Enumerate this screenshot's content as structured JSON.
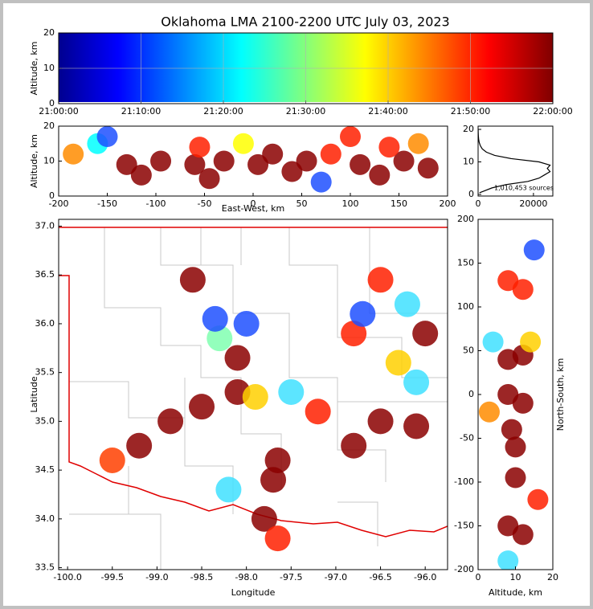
{
  "chart_data": [
    {
      "type": "time-height",
      "title": "Oklahoma LMA 2100-2200 UTC July 03, 2023",
      "ylabel": "Altitude, km",
      "xlim": [
        0,
        60
      ],
      "xticks": [
        {
          "value": 0,
          "label": "21:00:00"
        },
        {
          "value": 10,
          "label": "21:10:00"
        },
        {
          "value": 20,
          "label": "21:20:00"
        },
        {
          "value": 30,
          "label": "21:30:00"
        },
        {
          "value": 40,
          "label": "21:40:00"
        },
        {
          "value": 50,
          "label": "21:50:00"
        },
        {
          "value": 60,
          "label": "22:00:00"
        }
      ],
      "ylim": [
        0,
        20
      ],
      "yticks": [
        0,
        10,
        20
      ],
      "grid": true
    },
    {
      "type": "scatter",
      "xlabel": "East-West, km",
      "ylabel": "Altitude, km",
      "xlim": [
        -200,
        200
      ],
      "xticks": [
        -200,
        -150,
        -100,
        -50,
        0,
        50,
        100,
        150,
        200
      ],
      "ylim": [
        0,
        20
      ],
      "yticks": [
        0,
        10,
        20
      ],
      "x": [
        -185,
        -160,
        -130,
        -115,
        -95,
        -60,
        -45,
        -30,
        -55,
        5,
        20,
        40,
        55,
        110,
        130,
        155,
        180,
        140,
        80,
        -10,
        -150,
        70,
        100,
        170
      ],
      "y": [
        12,
        15,
        9,
        6,
        10,
        9,
        5,
        10,
        14,
        9,
        12,
        7,
        10,
        9,
        6,
        10,
        8,
        14,
        12,
        15,
        17,
        4,
        17,
        15
      ],
      "colors": [
        "#ff8c00",
        "#00ffff",
        "#8b0000",
        "#8b0000",
        "#8b0000",
        "#8b0000",
        "#8b0000",
        "#8b0000",
        "#ff2000",
        "#8b0000",
        "#8b0000",
        "#8b0000",
        "#8b0000",
        "#8b0000",
        "#8b0000",
        "#8b0000",
        "#8b0000",
        "#ff2000",
        "#ff2000",
        "#ffff00",
        "#1e50ff",
        "#1e50ff",
        "#ff2000",
        "#ff8c00"
      ]
    },
    {
      "type": "line",
      "annotation": "1,010,453 sources",
      "xlim": [
        0,
        27000
      ],
      "xticks": [
        0,
        20000
      ],
      "ylim": [
        -0.5,
        21
      ],
      "yticks": [
        0,
        10,
        20
      ],
      "x": [
        500,
        2000,
        5000,
        10000,
        18000,
        22000,
        24000,
        26000,
        25000,
        26000,
        22000,
        12000,
        6000,
        3000,
        1500,
        800,
        400,
        200,
        100,
        50,
        20
      ],
      "y": [
        0.5,
        1,
        2,
        3,
        4,
        5,
        6,
        7,
        8,
        9,
        10,
        11,
        12,
        13,
        14,
        15,
        16,
        17,
        18,
        19,
        20
      ]
    },
    {
      "type": "scatter",
      "xlabel": "Longitude",
      "ylabel": "Latitude",
      "xlim": [
        -100.1,
        -95.75
      ],
      "xticks": [
        {
          "value": -100,
          "label": "-100.0"
        },
        -99.5,
        {
          "value": -99,
          "label": "-99.0"
        },
        -98.5,
        {
          "value": -98,
          "label": "-98.0"
        },
        -97.5,
        {
          "value": -97,
          "label": "-97.0"
        },
        -96.5,
        {
          "value": -96,
          "label": "-96.0"
        }
      ],
      "ylim": [
        33.48,
        37.07
      ],
      "yticks": [
        33.5,
        {
          "value": 34,
          "label": "34.0"
        },
        34.5,
        {
          "value": 35,
          "label": "35.0"
        },
        35.5,
        {
          "value": 36,
          "label": "36.0"
        },
        36.5,
        {
          "value": 37,
          "label": "37.0"
        }
      ],
      "x": [
        -97.7,
        -97.65,
        -97.8,
        -97.65,
        -98.1,
        -98.5,
        -98.85,
        -99.2,
        -96.5,
        -96.1,
        -96.8,
        -97.2,
        -98.1,
        -98.3,
        -98.6,
        -96.5,
        -96.8,
        -96.2,
        -96.1,
        -96.0,
        -98.0,
        -97.5,
        -99.5,
        -96.7,
        -98.2,
        -97.9,
        -98.35,
        -96.3
      ],
      "y": [
        34.4,
        34.6,
        34.0,
        33.8,
        35.3,
        35.15,
        35.0,
        34.75,
        35.0,
        34.95,
        34.75,
        35.1,
        35.65,
        35.85,
        36.45,
        36.45,
        35.9,
        36.2,
        35.4,
        35.9,
        36.0,
        35.3,
        34.6,
        36.1,
        34.3,
        35.25,
        36.05,
        35.6
      ],
      "colors": [
        "#8b0000",
        "#8b0000",
        "#8b0000",
        "#ff2000",
        "#8b0000",
        "#8b0000",
        "#8b0000",
        "#8b0000",
        "#8b0000",
        "#8b0000",
        "#8b0000",
        "#ff2000",
        "#8b0000",
        "#80ffb0",
        "#8b0000",
        "#ff2000",
        "#ff2000",
        "#40e0ff",
        "#40e0ff",
        "#8b0000",
        "#1e50ff",
        "#40e0ff",
        "#ff4000",
        "#1e50ff",
        "#40e0ff",
        "#ffd000",
        "#1e50ff",
        "#ffd000"
      ]
    },
    {
      "type": "scatter",
      "xlabel": "Altitude, km",
      "ylabel": "North-South, km",
      "xlim": [
        0,
        20
      ],
      "xticks": [
        0,
        10,
        20
      ],
      "ylim": [
        -200,
        200
      ],
      "yticks": [
        -200,
        -150,
        -100,
        -50,
        0,
        50,
        100,
        150,
        200
      ],
      "x": [
        8,
        12,
        8,
        12,
        8,
        12,
        9,
        10,
        10,
        8,
        12,
        15,
        4,
        14,
        8,
        16,
        3
      ],
      "y": [
        130,
        120,
        40,
        45,
        0,
        -10,
        -40,
        -60,
        -95,
        -150,
        -160,
        165,
        60,
        60,
        -190,
        -120,
        -20
      ],
      "colors": [
        "#ff2000",
        "#ff2000",
        "#8b0000",
        "#8b0000",
        "#8b0000",
        "#8b0000",
        "#8b0000",
        "#8b0000",
        "#8b0000",
        "#8b0000",
        "#8b0000",
        "#1e50ff",
        "#40e0ff",
        "#ffd000",
        "#40e0ff",
        "#ff2000",
        "#ff8c00"
      ]
    }
  ]
}
